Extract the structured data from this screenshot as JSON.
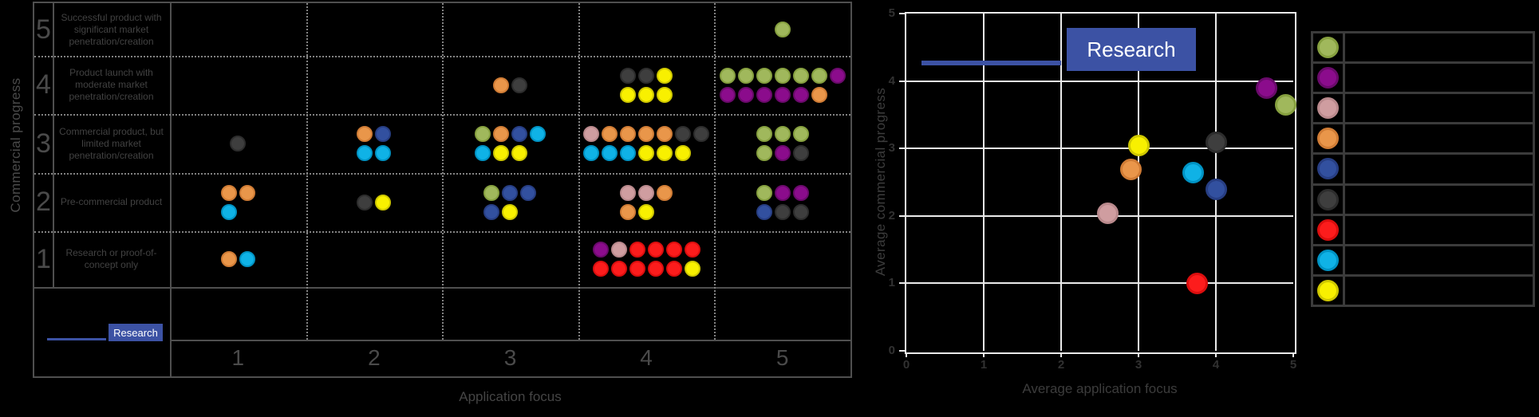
{
  "colors": {
    "background": "#000000",
    "research_blue": "#3c52a4",
    "matrix_border": "#4f4f4f",
    "matrix_dotted": "#828282",
    "plot_grid": "#eaeaea",
    "axis_text": "#3c3c3c",
    "table_text": "#474747",
    "legend_border": "#3b3b3b",
    "series": {
      "green": {
        "fill": "#a0b85c",
        "edge": "#86a03f"
      },
      "purple": {
        "fill": "#8b0c8c",
        "edge": "#6a0a6b"
      },
      "pink": {
        "fill": "#cf9da0",
        "edge": "#b9898c"
      },
      "orange": {
        "fill": "#e9964a",
        "edge": "#d07c35"
      },
      "navy": {
        "fill": "#32509f",
        "edge": "#273e83"
      },
      "gray": {
        "fill": "#3e3e3e",
        "edge": "#2d2d2d"
      },
      "red": {
        "fill": "#fc1c1c",
        "edge": "#db0e0e"
      },
      "cyan": {
        "fill": "#0fb2e6",
        "edge": "#0093c4"
      },
      "yellow": {
        "fill": "#f8f000",
        "edge": "#cfc800"
      }
    }
  },
  "chart_data": [
    {
      "type": "dot-matrix",
      "xlabel": "Application focus",
      "ylabel": "Commercial progress",
      "x_tick_labels": [
        "1",
        "2",
        "3",
        "4",
        "5"
      ],
      "y_rows": [
        {
          "level": "5",
          "description": "Successful product with significant market penetration/creation"
        },
        {
          "level": "4",
          "description": "Product launch with moderate market penetration/creation"
        },
        {
          "level": "3",
          "description": "Commercial product, but limited market penetration/creation"
        },
        {
          "level": "2",
          "description": "Pre-commercial product"
        },
        {
          "level": "1",
          "description": "Research or proof-of-concept only"
        }
      ],
      "legend": {
        "label": "Research"
      },
      "cells": [
        {
          "x": 1,
          "y": 3,
          "dot_rows": [
            [
              "gray"
            ]
          ]
        },
        {
          "x": 1,
          "y": 2,
          "dot_rows": [
            [
              "orange",
              "orange"
            ],
            [
              "cyan"
            ]
          ]
        },
        {
          "x": 1,
          "y": 1,
          "dot_rows": [
            [
              "orange",
              "cyan"
            ]
          ]
        },
        {
          "x": 2,
          "y": 3,
          "dot_rows": [
            [
              "orange",
              "navy"
            ],
            [
              "cyan",
              "cyan"
            ]
          ]
        },
        {
          "x": 2,
          "y": 2,
          "dot_rows": [
            [
              "gray",
              "yellow"
            ]
          ]
        },
        {
          "x": 3,
          "y": 4,
          "dot_rows": [
            [
              "orange",
              "gray"
            ]
          ]
        },
        {
          "x": 3,
          "y": 3,
          "dot_rows": [
            [
              "green",
              "orange",
              "navy",
              "cyan"
            ],
            [
              "cyan",
              "yellow",
              "yellow"
            ]
          ]
        },
        {
          "x": 3,
          "y": 2,
          "dot_rows": [
            [
              "green",
              "navy",
              "navy"
            ],
            [
              "navy",
              "yellow"
            ]
          ]
        },
        {
          "x": 4,
          "y": 4,
          "dot_rows": [
            [
              "gray",
              "gray",
              "yellow"
            ],
            [
              "yellow",
              "yellow",
              "yellow"
            ]
          ]
        },
        {
          "x": 4,
          "y": 3,
          "dot_rows": [
            [
              "pink",
              "orange",
              "orange",
              "orange",
              "orange",
              "gray",
              "gray"
            ],
            [
              "cyan",
              "cyan",
              "cyan",
              "yellow",
              "yellow",
              "yellow"
            ]
          ]
        },
        {
          "x": 4,
          "y": 2,
          "dot_rows": [
            [
              "pink",
              "pink",
              "orange"
            ],
            [
              "orange",
              "yellow"
            ]
          ]
        },
        {
          "x": 4,
          "y": 1,
          "dot_rows": [
            [
              "purple",
              "pink",
              "red",
              "red",
              "red",
              "red"
            ],
            [
              "red",
              "red",
              "red",
              "red",
              "red",
              "yellow"
            ]
          ]
        },
        {
          "x": 5,
          "y": 5,
          "dot_rows": [
            [
              "green"
            ]
          ]
        },
        {
          "x": 5,
          "y": 4,
          "dot_rows": [
            [
              "green",
              "green",
              "green",
              "green",
              "green",
              "green",
              "purple"
            ],
            [
              "purple",
              "purple",
              "purple",
              "purple",
              "purple",
              "orange"
            ]
          ]
        },
        {
          "x": 5,
          "y": 3,
          "dot_rows": [
            [
              "green",
              "green",
              "green"
            ],
            [
              "green",
              "purple",
              "gray"
            ]
          ]
        },
        {
          "x": 5,
          "y": 2,
          "dot_rows": [
            [
              "green",
              "purple",
              "purple"
            ],
            [
              "navy",
              "gray",
              "gray"
            ]
          ]
        }
      ]
    },
    {
      "type": "scatter",
      "xlabel": "Average application focus",
      "ylabel": "Average commercial progress",
      "xlim": [
        0,
        5
      ],
      "ylim": [
        0,
        5
      ],
      "grid": true,
      "x_tick_labels": [
        "0",
        "1",
        "2",
        "3",
        "4",
        "5"
      ],
      "y_tick_labels": [
        "0",
        "1",
        "2",
        "3",
        "4",
        "5"
      ],
      "reference_line": {
        "label": "Research",
        "y": 4.27,
        "x_start": 0.2,
        "x_end": 2.0
      },
      "points": [
        {
          "series": "yellow",
          "x": 3.0,
          "y": 3.05
        },
        {
          "series": "orange",
          "x": 2.9,
          "y": 2.7
        },
        {
          "series": "pink",
          "x": 2.6,
          "y": 2.05
        },
        {
          "series": "cyan",
          "x": 3.7,
          "y": 2.65
        },
        {
          "series": "navy",
          "x": 4.0,
          "y": 2.4
        },
        {
          "series": "gray",
          "x": 4.0,
          "y": 3.1
        },
        {
          "series": "red",
          "x": 3.75,
          "y": 1.0
        },
        {
          "series": "purple",
          "x": 4.65,
          "y": 3.9
        },
        {
          "series": "green",
          "x": 4.9,
          "y": 3.65
        }
      ],
      "legend_order": [
        "green",
        "purple",
        "pink",
        "orange",
        "navy",
        "gray",
        "red",
        "cyan",
        "yellow"
      ]
    }
  ]
}
